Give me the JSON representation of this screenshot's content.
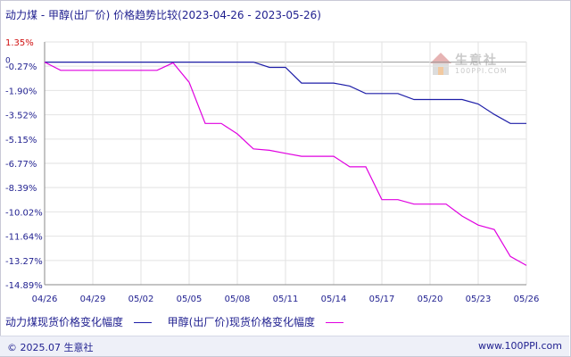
{
  "title": "动力煤 - 甲醇(出厂价) 价格趋势比较(2023-04-26 - 2023-05-26)",
  "watermark": {
    "text": "生意社",
    "sub": "100PPI.COM"
  },
  "footer": {
    "left": "© 2025.07 生意社",
    "right": "www.100PPI.com"
  },
  "legend": [
    {
      "label": "动力煤现货价格变化幅度",
      "color": "#1e1ea8"
    },
    {
      "label": "甲醇(出厂价)现货价格变化幅度",
      "color": "#e000e0"
    }
  ],
  "chart_data": {
    "type": "line",
    "title": "动力煤 - 甲醇(出厂价) 价格趋势比较(2023-04-26 - 2023-05-26)",
    "xlabel": "",
    "ylabel": "",
    "y_tick_labels": [
      "1.35%",
      "-0.27%",
      "-1.90%",
      "-3.52%",
      "-5.15%",
      "-6.77%",
      "-8.39%",
      "-10.02%",
      "-11.64%",
      "-13.27%",
      "-14.89%"
    ],
    "y_ticks": [
      1.35,
      -0.27,
      -1.9,
      -3.52,
      -5.15,
      -6.77,
      -8.39,
      -10.02,
      -11.64,
      -13.27,
      -14.89
    ],
    "zero_label": "0",
    "ylim": [
      -14.89,
      1.35
    ],
    "x_tick_labels": [
      "04/26",
      "04/29",
      "05/02",
      "05/05",
      "05/08",
      "05/11",
      "05/14",
      "05/17",
      "05/20",
      "05/23",
      "05/26"
    ],
    "grid": true,
    "legend_position": "bottom",
    "series": [
      {
        "name": "动力煤现货价格变化幅度",
        "color": "#1e1ea8",
        "x": [
          "04/26",
          "04/27",
          "04/28",
          "04/29",
          "04/30",
          "05/01",
          "05/02",
          "05/03",
          "05/04",
          "05/05",
          "05/06",
          "05/07",
          "05/08",
          "05/09",
          "05/10",
          "05/11",
          "05/12",
          "05/13",
          "05/14",
          "05/15",
          "05/16",
          "05/17",
          "05/18",
          "05/19",
          "05/20",
          "05/21",
          "05/22",
          "05/23",
          "05/24",
          "05/25",
          "05/26"
        ],
        "values": [
          0,
          0,
          0,
          0,
          0,
          0,
          0,
          0,
          0,
          0,
          0,
          0,
          0,
          0,
          -0.35,
          -0.35,
          -1.4,
          -1.4,
          -1.4,
          -1.6,
          -2.1,
          -2.1,
          -2.1,
          -2.5,
          -2.5,
          -2.5,
          -2.5,
          -2.8,
          -3.5,
          -4.1,
          -4.1
        ]
      },
      {
        "name": "甲醇(出厂价)现货价格变化幅度",
        "color": "#e000e0",
        "x": [
          "04/26",
          "04/27",
          "04/28",
          "04/29",
          "04/30",
          "05/01",
          "05/02",
          "05/03",
          "05/04",
          "05/05",
          "05/06",
          "05/07",
          "05/08",
          "05/09",
          "05/10",
          "05/11",
          "05/12",
          "05/13",
          "05/14",
          "05/15",
          "05/16",
          "05/17",
          "05/18",
          "05/19",
          "05/20",
          "05/21",
          "05/22",
          "05/23",
          "05/24",
          "05/25",
          "05/26"
        ],
        "values": [
          0,
          -0.55,
          -0.55,
          -0.55,
          -0.55,
          -0.55,
          -0.55,
          -0.55,
          -0.05,
          -1.35,
          -4.1,
          -4.1,
          -4.8,
          -5.8,
          -5.9,
          -6.1,
          -6.3,
          -6.3,
          -6.3,
          -7.0,
          -7.0,
          -9.2,
          -9.2,
          -9.5,
          -9.5,
          -9.5,
          -10.3,
          -10.9,
          -11.2,
          -13.0,
          -13.6
        ]
      }
    ]
  }
}
